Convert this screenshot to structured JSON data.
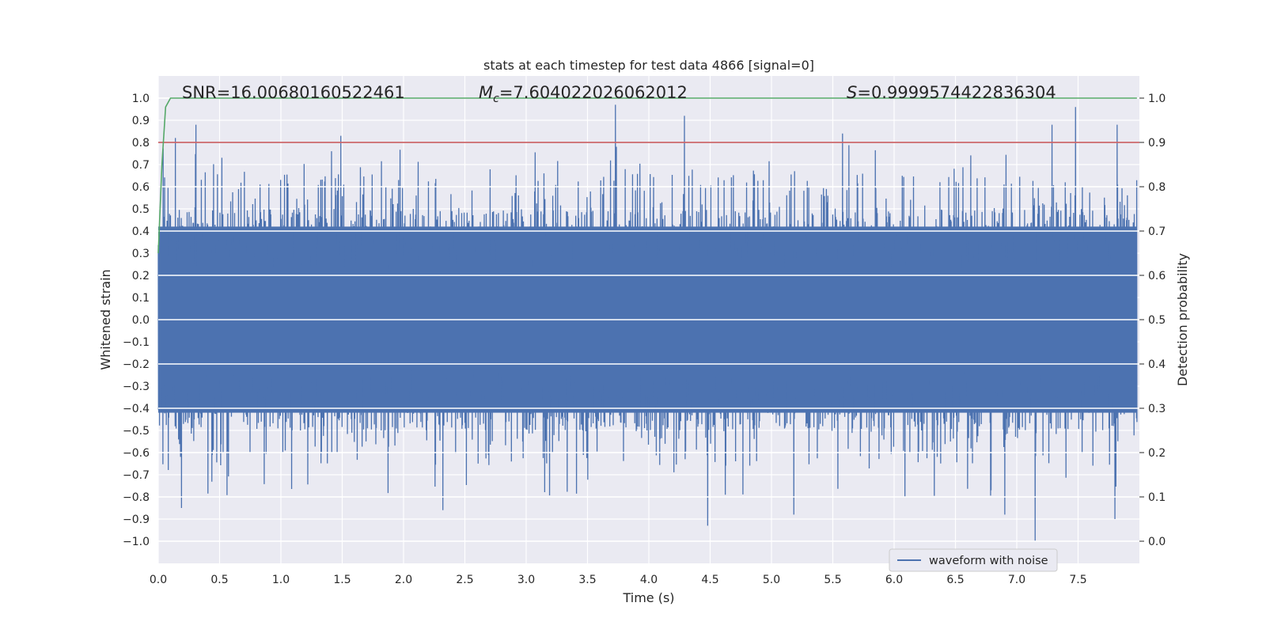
{
  "chart_data": {
    "type": "line",
    "title": "stats at each timestep for test data 4866 [signal=0]",
    "xlabel": "Time (s)",
    "ylabel_left": "Whitened strain",
    "ylabel_right": "Detection probability",
    "xlim": [
      0.0,
      8.0
    ],
    "ylim_left": [
      -1.1,
      1.1
    ],
    "ylim_right": [
      -0.05,
      1.05
    ],
    "x_ticks": [
      0.0,
      0.5,
      1.0,
      1.5,
      2.0,
      2.5,
      3.0,
      3.5,
      4.0,
      4.5,
      5.0,
      5.5,
      6.0,
      6.5,
      7.0,
      7.5
    ],
    "x_tick_labels": [
      "0.0",
      "0.5",
      "1.0",
      "1.5",
      "2.0",
      "2.5",
      "3.0",
      "3.5",
      "4.0",
      "4.5",
      "5.0",
      "5.5",
      "6.0",
      "6.5",
      "7.0",
      "7.5"
    ],
    "y_ticks_left": [
      1.0,
      0.9,
      0.8,
      0.7,
      0.6,
      0.5,
      0.4,
      0.3,
      0.2,
      0.1,
      0.0,
      -0.1,
      -0.2,
      -0.3,
      -0.4,
      -0.5,
      -0.6,
      -0.7,
      -0.8,
      -0.9,
      -1.0
    ],
    "y_tick_labels_left": [
      "1.0",
      "0.9",
      "0.8",
      "0.7",
      "0.6",
      "0.5",
      "0.4",
      "0.3",
      "0.2",
      "0.1",
      "0.0",
      "−0.1",
      "−0.2",
      "−0.3",
      "−0.4",
      "−0.5",
      "−0.6",
      "−0.7",
      "−0.8",
      "−0.9",
      "−1.0"
    ],
    "y_ticks_right": [
      1.0,
      0.9,
      0.8,
      0.7,
      0.6,
      0.5,
      0.4,
      0.3,
      0.2,
      0.1,
      0.0
    ],
    "y_tick_labels_right": [
      "1.0",
      "0.9",
      "0.8",
      "0.7",
      "0.6",
      "0.5",
      "0.4",
      "0.3",
      "0.2",
      "0.1",
      "0.0"
    ],
    "grid": true,
    "annotations": {
      "snr": "SNR=16.00680160522461",
      "mc_symbol": "M",
      "mc_subscript": "c",
      "mc_value": "=7.604022026062012",
      "s_symbol": "S",
      "s_value": "=0.9999574422836304"
    },
    "series": [
      {
        "name": "waveform with noise",
        "axis": "left",
        "color": "#4c72b0",
        "kind": "noise",
        "t_range": [
          0.0,
          7.98
        ],
        "amplitude_bulk": [
          -0.42,
          0.42
        ],
        "peak_max": 0.98,
        "trough_min": -1.0,
        "notable_peaks": [
          {
            "t": 3.73,
            "y": 0.97
          },
          {
            "t": 7.48,
            "y": 0.96
          },
          {
            "t": 4.29,
            "y": 0.92
          },
          {
            "t": 7.29,
            "y": 0.88
          },
          {
            "t": 0.31,
            "y": 0.88
          },
          {
            "t": 7.82,
            "y": 0.88
          },
          {
            "t": 0.14,
            "y": 0.82
          },
          {
            "t": 1.49,
            "y": 0.83
          },
          {
            "t": 5.58,
            "y": 0.84
          }
        ],
        "notable_troughs": [
          {
            "t": 7.15,
            "y": -1.0
          },
          {
            "t": 4.48,
            "y": -0.93
          },
          {
            "t": 0.19,
            "y": -0.85
          },
          {
            "t": 2.32,
            "y": -0.86
          },
          {
            "t": 7.8,
            "y": -0.9
          },
          {
            "t": 6.9,
            "y": -0.88
          },
          {
            "t": 5.18,
            "y": -0.88
          }
        ]
      },
      {
        "name": "detection probability",
        "axis": "right",
        "color": "#55a868",
        "x": [
          0.0,
          0.03,
          0.06,
          0.1,
          0.2,
          7.98
        ],
        "y": [
          0.65,
          0.85,
          0.98,
          1.0,
          1.0,
          1.0
        ]
      },
      {
        "name": "threshold",
        "axis": "right",
        "color": "#c44e52",
        "x": [
          0.0,
          8.0
        ],
        "y": [
          0.9,
          0.9
        ]
      }
    ],
    "legend": {
      "position": "bottom-right",
      "entries": [
        {
          "label": "waveform with noise",
          "color": "#4c72b0"
        }
      ]
    }
  }
}
